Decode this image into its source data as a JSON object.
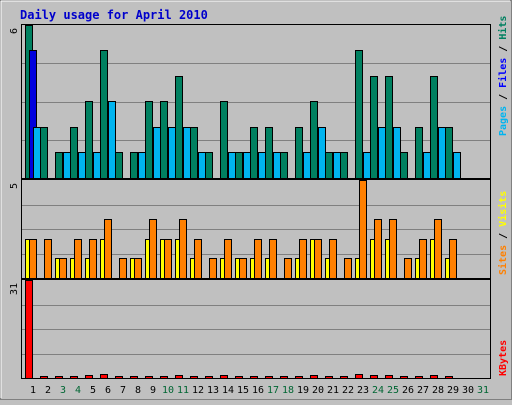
{
  "chart_data": {
    "type": "bar",
    "title": "Daily usage for April 2010",
    "weekend_day_color": "#006633",
    "weekday_day_color": "#000000",
    "days": [
      {
        "label": "1",
        "weekend": false
      },
      {
        "label": "2",
        "weekend": false
      },
      {
        "label": "3",
        "weekend": true
      },
      {
        "label": "4",
        "weekend": true
      },
      {
        "label": "5",
        "weekend": false
      },
      {
        "label": "6",
        "weekend": false
      },
      {
        "label": "7",
        "weekend": false
      },
      {
        "label": "8",
        "weekend": false
      },
      {
        "label": "9",
        "weekend": false
      },
      {
        "label": "10",
        "weekend": true
      },
      {
        "label": "11",
        "weekend": true
      },
      {
        "label": "12",
        "weekend": false
      },
      {
        "label": "13",
        "weekend": false
      },
      {
        "label": "14",
        "weekend": false
      },
      {
        "label": "15",
        "weekend": false
      },
      {
        "label": "16",
        "weekend": false
      },
      {
        "label": "17",
        "weekend": true
      },
      {
        "label": "18",
        "weekend": true
      },
      {
        "label": "19",
        "weekend": false
      },
      {
        "label": "20",
        "weekend": false
      },
      {
        "label": "21",
        "weekend": false
      },
      {
        "label": "22",
        "weekend": false
      },
      {
        "label": "23",
        "weekend": false
      },
      {
        "label": "24",
        "weekend": true
      },
      {
        "label": "25",
        "weekend": true
      },
      {
        "label": "26",
        "weekend": false
      },
      {
        "label": "27",
        "weekend": false
      },
      {
        "label": "28",
        "weekend": false
      },
      {
        "label": "29",
        "weekend": false
      },
      {
        "label": "30",
        "weekend": false
      },
      {
        "label": "31",
        "weekend": true
      }
    ],
    "panels": [
      {
        "max_label": "6",
        "ymax": 6,
        "legend": [
          {
            "text": "Pages",
            "color": "#00b4f0"
          },
          {
            "text": " / ",
            "color": "#000000"
          },
          {
            "text": "Files",
            "color": "#0000ff"
          },
          {
            "text": " / ",
            "color": "#000000"
          },
          {
            "text": "Hits",
            "color": "#008060"
          }
        ],
        "series": [
          {
            "name": "Hits",
            "color": "#008060",
            "values": [
              6,
              2,
              1,
              2,
              3,
              5,
              1,
              1,
              3,
              3,
              4,
              2,
              1,
              3,
              1,
              2,
              2,
              1,
              2,
              3,
              1,
              1,
              5,
              4,
              4,
              1,
              2,
              4,
              2,
              0,
              0
            ]
          },
          {
            "name": "Files",
            "color": "#0000dd",
            "values": [
              5,
              0,
              0,
              0,
              0,
              0,
              0,
              0,
              0,
              0,
              0,
              0,
              0,
              0,
              0,
              0,
              0,
              0,
              0,
              0,
              0,
              0,
              0,
              0,
              0,
              0,
              0,
              0,
              0,
              0,
              0
            ]
          },
          {
            "name": "Pages",
            "color": "#00b4f0",
            "values": [
              2,
              0,
              1,
              1,
              1,
              3,
              0,
              1,
              2,
              2,
              2,
              1,
              0,
              1,
              1,
              1,
              1,
              0,
              1,
              2,
              1,
              0,
              1,
              2,
              2,
              0,
              1,
              2,
              1,
              0,
              0
            ]
          }
        ]
      },
      {
        "max_label": "5",
        "ymax": 5,
        "legend": [
          {
            "text": "Sites",
            "color": "#ff8000"
          },
          {
            "text": " / ",
            "color": "#000000"
          },
          {
            "text": "Visits",
            "color": "#ffff00"
          }
        ],
        "series": [
          {
            "name": "Visits",
            "color": "#ffff00",
            "values": [
              2,
              0,
              1,
              1,
              1,
              2,
              0,
              1,
              2,
              2,
              2,
              1,
              0,
              1,
              1,
              1,
              1,
              0,
              1,
              2,
              1,
              0,
              1,
              2,
              2,
              0,
              1,
              2,
              1,
              0,
              0
            ]
          },
          {
            "name": "Sites",
            "color": "#ff8000",
            "values": [
              2,
              2,
              1,
              2,
              2,
              3,
              1,
              1,
              3,
              2,
              3,
              2,
              1,
              2,
              1,
              2,
              2,
              1,
              2,
              2,
              2,
              1,
              5,
              3,
              3,
              1,
              2,
              3,
              2,
              0,
              0
            ]
          }
        ]
      },
      {
        "max_label": "31",
        "ymax": 31,
        "legend": [
          {
            "text": "KBytes",
            "color": "#ff0000"
          }
        ],
        "series": [
          {
            "name": "KBytes",
            "color": "#ff0000",
            "values": [
              31,
              0.5,
              0.5,
              0.5,
              0.8,
              1.2,
              0.3,
              0.3,
              0.6,
              0.6,
              0.9,
              0.5,
              0.3,
              0.8,
              0.3,
              0.5,
              0.5,
              0.3,
              0.5,
              0.8,
              0.5,
              0.3,
              1.2,
              1,
              1,
              0.3,
              0.5,
              1,
              0.5,
              0,
              0
            ]
          }
        ]
      }
    ]
  }
}
